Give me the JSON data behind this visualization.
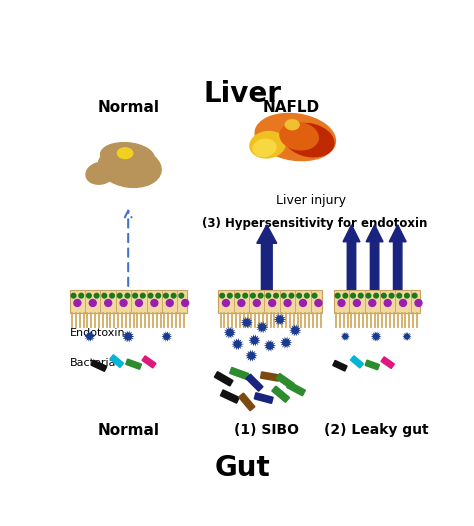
{
  "title_liver": "Liver",
  "title_gut": "Gut",
  "label_normal_top": "Normal",
  "label_nafld": "NAFLD",
  "label_liver_injury": "Liver injury",
  "label_hypersensitivity": "(3) Hypersensitivity for endotoxin",
  "label_endotoxin": "Endotoxin",
  "label_bacteria": "Bacteria",
  "label_normal_bottom": "Normal",
  "label_sibo": "(1) SIBO",
  "label_leaky_gut": "(2) Leaky gut",
  "bg_color": "#ffffff",
  "liver_normal_color": "#b8935a",
  "liver_normal_gallbladder": "#f0d020",
  "arrow_color": "#1a237e",
  "dashed_arrow_color": "#4472c4",
  "gut_wall_color": "#f5deb3",
  "gut_cilia_color": "#d4aa60",
  "endotoxin_color": "#1a3a8f",
  "bacteria_colors_normal": [
    "#111111",
    "#00b5d8",
    "#2e8b2e",
    "#e0187c"
  ],
  "bacteria_colors_sibo": [
    "#111111",
    "#2e8b2e",
    "#1a237e",
    "#7b4a10",
    "#2e8b2e",
    "#111111",
    "#7b4a10",
    "#1a237e",
    "#2e8b2e",
    "#2e8b2e"
  ],
  "bacteria_colors_leaky": [
    "#111111",
    "#00b5d8",
    "#2e8b2e",
    "#e0187c"
  ],
  "title_fontsize": 20,
  "label_fontsize": 10
}
